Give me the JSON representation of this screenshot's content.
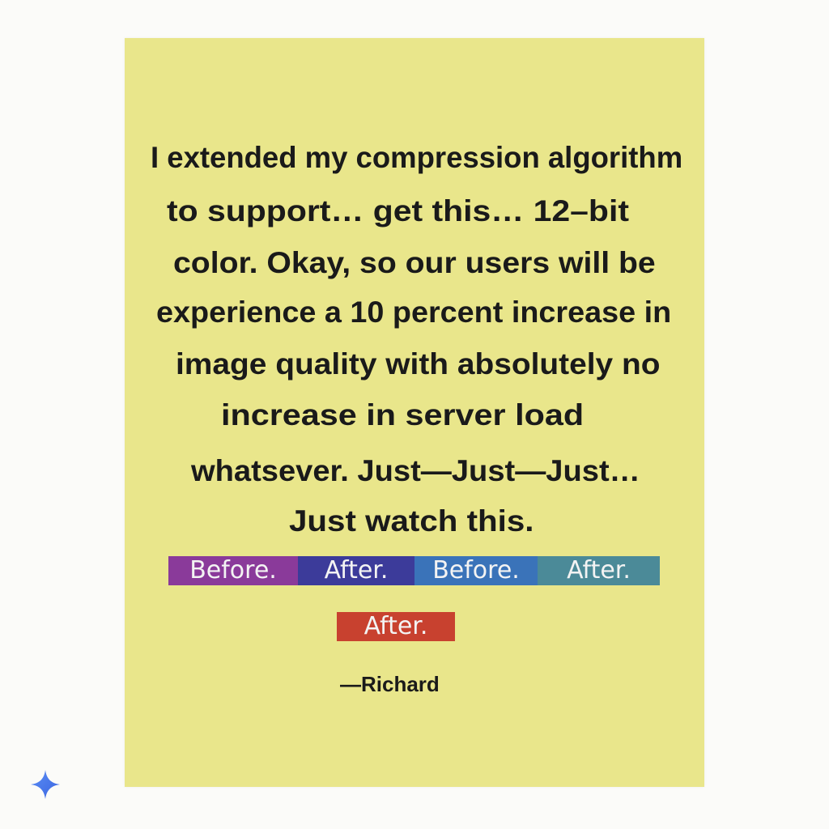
{
  "quote": {
    "lines": [
      "I extended my compression algorithm",
      "to support…   get this…  12–bit",
      "color. Okay, so our users will be",
      "experience a 10 percent increase in",
      "image quality with absolutely no",
      "increase in server load",
      "whatsever. Just—Just—Just…",
      "Just watch this."
    ]
  },
  "tags": {
    "row1": [
      {
        "label": "Before.",
        "color": "#8a3a9a"
      },
      {
        "label": "After.",
        "color": "#3c3b9a"
      },
      {
        "label": "Before.",
        "color": "#3a73b9"
      },
      {
        "label": "After.",
        "color": "#4b8a98"
      }
    ],
    "row2": [
      {
        "label": "After.",
        "color": "#c8412f"
      }
    ]
  },
  "signature": "—Richard",
  "colors": {
    "note_background": "#e9e68b",
    "page_background": "#fbfbf9",
    "sparkle": "#4a7cf0"
  },
  "icons": {
    "corner": "sparkle-icon"
  }
}
